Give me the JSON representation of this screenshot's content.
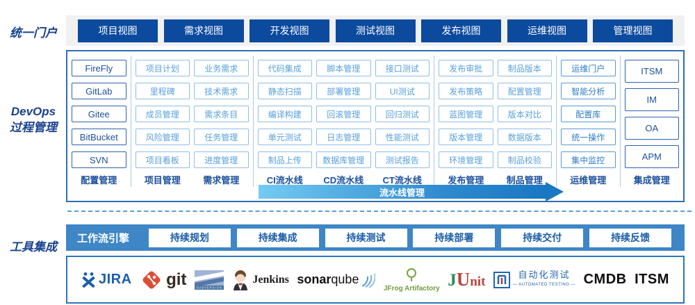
{
  "portal": {
    "label": "统一门户",
    "views": [
      "项目视图",
      "需求视图",
      "开发视图",
      "测试视图",
      "发布视图",
      "运维视图",
      "管理视图"
    ]
  },
  "process": {
    "label_line1": "DevOps",
    "label_line2": "过程管理",
    "pipeline_arrow_label": "流水线管理",
    "columns": [
      {
        "footer": "配置管理",
        "style": "dark",
        "divider_after": true,
        "items": [
          "FireFly",
          "GitLab",
          "Gitee",
          "BitBucket",
          "SVN"
        ]
      },
      {
        "footer": "项目管理",
        "style": "light",
        "divider_after": false,
        "items": [
          "项目计划",
          "里程碑",
          "成员管理",
          "风险管理",
          "项目看板"
        ]
      },
      {
        "footer": "需求管理",
        "style": "light",
        "divider_after": true,
        "items": [
          "业务需求",
          "技术需求",
          "需求条目",
          "任务管理",
          "进度管理"
        ]
      },
      {
        "footer": "CI流水线",
        "style": "light",
        "divider_after": false,
        "items": [
          "代码集成",
          "静态扫描",
          "编译构建",
          "单元测试",
          "制品上传"
        ]
      },
      {
        "footer": "CD流水线",
        "style": "light",
        "divider_after": false,
        "items": [
          "脚本管理",
          "部署管理",
          "回滚管理",
          "日志管理",
          "数据库管理"
        ]
      },
      {
        "footer": "CT流水线",
        "style": "light",
        "divider_after": true,
        "items": [
          "接口测试",
          "UI测试",
          "回归测试",
          "性能测试",
          "测试报告"
        ]
      },
      {
        "footer": "发布管理",
        "style": "light",
        "divider_after": false,
        "items": [
          "发布审批",
          "发布策略",
          "蓝图管理",
          "版本管理",
          "环境管理"
        ]
      },
      {
        "footer": "制品管理",
        "style": "light",
        "divider_after": true,
        "items": [
          "制品版本",
          "配置管理",
          "版本对比",
          "数据版本",
          "制品校验"
        ]
      },
      {
        "footer": "运维管理",
        "style": "mid",
        "divider_after": true,
        "items": [
          "运维门户",
          "智能分析",
          "配置库",
          "统一操作",
          "集中监控"
        ]
      },
      {
        "footer": "集成管理",
        "style": "dark tall",
        "divider_after": false,
        "items": [
          "ITSM",
          "IM",
          "OA",
          "APM"
        ]
      }
    ]
  },
  "workflow": {
    "section_label": "工具集成",
    "engine_label": "工作流引擎",
    "stages": [
      "持续规划",
      "持续集成",
      "持续测试",
      "持续部署",
      "持续交付",
      "持续反馈"
    ]
  },
  "tools": {
    "jira_text": "JIRA",
    "git_text": "git",
    "svn_text": "SUBVERSION",
    "jenkins_text": "Jenkins",
    "sonar_bold": "sonar",
    "sonar_rest": "qube",
    "jfrog_text": "JFrog Artifactory",
    "junit_j": "J",
    "junit_u": "U",
    "junit_nit": "nit",
    "autotest_text": "自动化测试",
    "autotest_sub": "— AUTOMATED TESTING —",
    "cmdb_text": "CMDB",
    "itsm_text": "ITSM"
  },
  "colors": {
    "primary_navy": "#0c4a9e",
    "label_navy": "#17418f",
    "panel_border": "#2e6cb5",
    "box_dark_border": "#2f62ad",
    "box_dark_text": "#1c4f9c",
    "box_light_border": "#8fbde9",
    "box_light_text": "#58a0dc",
    "box_mid_border": "#5798d3",
    "workflow_bar_bg": "#3e86c6",
    "arrow_gradient_start": "#74cbf2",
    "arrow_gradient_end": "#1a77c2",
    "portal_strip_bg": "#f1f1f1",
    "dashed_divider": "#5b9bd5"
  }
}
